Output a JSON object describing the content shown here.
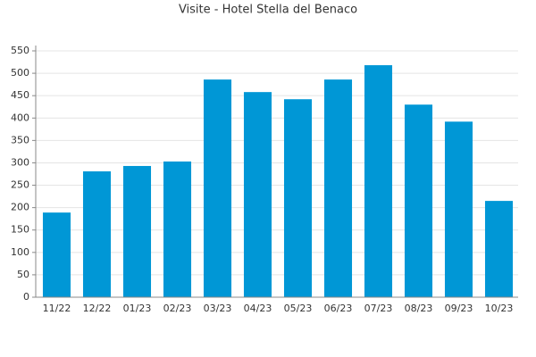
{
  "chart_data": {
    "type": "bar",
    "title": "Visite - Hotel Stella del Benaco",
    "categories": [
      "11/22",
      "12/22",
      "01/23",
      "02/23",
      "03/23",
      "04/23",
      "05/23",
      "06/23",
      "07/23",
      "08/23",
      "09/23",
      "10/23"
    ],
    "values": [
      189,
      281,
      293,
      303,
      486,
      458,
      442,
      486,
      518,
      430,
      392,
      215
    ],
    "color": "#0097d6",
    "ylim": [
      0,
      550
    ],
    "yticks": [
      0,
      50,
      100,
      150,
      200,
      250,
      300,
      350,
      400,
      450,
      500,
      550
    ],
    "grid": true
  }
}
